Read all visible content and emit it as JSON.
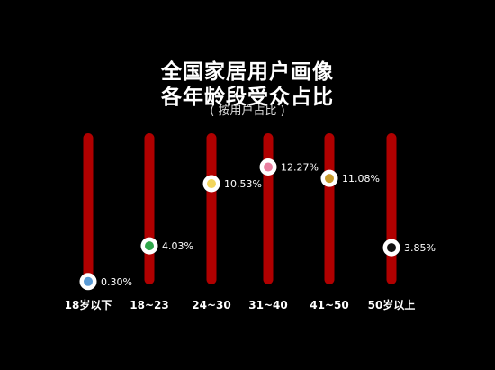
{
  "chart_data": {
    "type": "lollipop",
    "title": [
      "全国家居用户画像",
      "各年龄段受众占比"
    ],
    "subtitle": "( 按用户占比 )",
    "categories": [
      "18岁以下",
      "18~23",
      "24~30",
      "31~40",
      "41~50",
      "50岁以上"
    ],
    "values": [
      0.3,
      4.03,
      10.53,
      12.27,
      11.08,
      3.85
    ],
    "value_labels": [
      "0.30%",
      "4.03%",
      "10.53%",
      "12.27%",
      "11.08%",
      "3.85%"
    ],
    "marker_colors": [
      "#5b9bd5",
      "#2fa64a",
      "#f2d55c",
      "#ea7fa0",
      "#c89a2a",
      "#111111"
    ],
    "bar_color": "#b00000",
    "background": "#000000"
  }
}
